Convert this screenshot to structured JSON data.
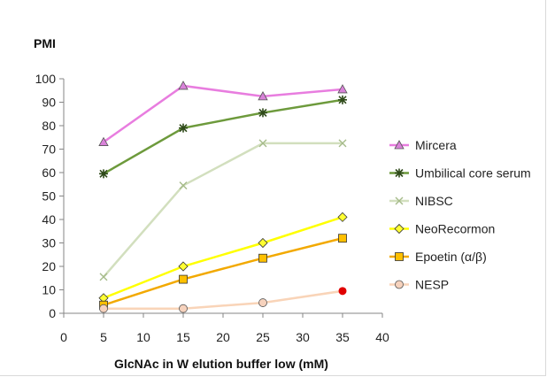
{
  "chart_data": {
    "type": "line",
    "ylabel": "PMI",
    "xlabel": "GlcNAc in W elution buffer low (mM)",
    "xlim": [
      0,
      40
    ],
    "ylim": [
      0,
      100
    ],
    "xticks": [
      0,
      5,
      10,
      15,
      20,
      25,
      30,
      35,
      40
    ],
    "yticks": [
      0,
      10,
      20,
      30,
      40,
      50,
      60,
      70,
      80,
      90,
      100
    ],
    "grid": false,
    "legend_position": "right",
    "x": [
      5,
      15,
      25,
      35
    ],
    "series": [
      {
        "name": "Mircera",
        "values": [
          73,
          97,
          92.5,
          95.5
        ],
        "color": "#e87ddf",
        "marker": "triangle",
        "marker_fill": "#d982d9"
      },
      {
        "name": "Umbilical core serum",
        "values": [
          59.5,
          79,
          85.5,
          91
        ],
        "color": "#6d9a3c",
        "marker": "star",
        "marker_fill": "#5d8a2e"
      },
      {
        "name": "NIBSC",
        "values": [
          15.5,
          54.5,
          72.5,
          72.5
        ],
        "color": "#d2dfbe",
        "marker": "x",
        "marker_fill": "#a6bb8a"
      },
      {
        "name": "NeoRecormon",
        "values": [
          6.5,
          20,
          30,
          41
        ],
        "color": "#ffff00",
        "marker": "diamond",
        "marker_fill": "#ffff33"
      },
      {
        "name": "Epoetin (α/β)",
        "values": [
          3.5,
          14.5,
          23.5,
          32
        ],
        "color": "#f2a900",
        "marker": "square",
        "marker_fill": "#ffc000"
      },
      {
        "name": "NESP",
        "values": [
          2,
          2,
          4.5,
          9.5
        ],
        "color": "#f9d4b8",
        "marker": "circle",
        "marker_fill": "#f6d2bd",
        "highlight_last_color": "#e00000"
      }
    ]
  }
}
